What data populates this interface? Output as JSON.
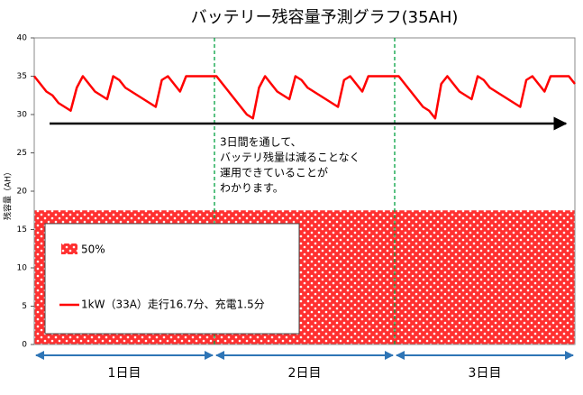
{
  "chart_data": {
    "type": "line",
    "title": "バッテリー残容量予測グラフ(35AH)",
    "y_label": "残容量（AH）",
    "ylim": [
      0,
      40
    ],
    "yticks": [
      0,
      5,
      10,
      15,
      20,
      25,
      30,
      35,
      40
    ],
    "categories": [
      null,
      null,
      null,
      null,
      null,
      null,
      null,
      null,
      null,
      null,
      null,
      null,
      null,
      null,
      null,
      null,
      null,
      null,
      null,
      null,
      null,
      null,
      null,
      null,
      null,
      null,
      null,
      null,
      null,
      null,
      null,
      null,
      null,
      null,
      null,
      null,
      null,
      null,
      null,
      null,
      null,
      null,
      null,
      null,
      null,
      null,
      null,
      null,
      null,
      null,
      null,
      null,
      null,
      null,
      null,
      null,
      null,
      null,
      null,
      null,
      null,
      null,
      null,
      null,
      null,
      null,
      null,
      null,
      null,
      null,
      null,
      null,
      null,
      null,
      null,
      null,
      null,
      null,
      null,
      null,
      null,
      null,
      null,
      null,
      null,
      null,
      null,
      null,
      null,
      null
    ],
    "series": [
      {
        "name": "1kW（33A）走行16.7分、充電1.5分",
        "color": "#ff0000",
        "values": [
          35,
          34,
          33,
          32.5,
          31.5,
          31,
          30.5,
          33.5,
          35,
          34,
          33,
          32.5,
          32,
          35,
          34.5,
          33.5,
          33,
          32.5,
          32,
          31.5,
          31,
          34.5,
          35,
          34,
          33,
          35,
          35,
          35,
          35,
          35,
          35,
          34,
          33,
          32,
          31,
          30,
          29.5,
          33.5,
          35,
          34,
          33,
          32.5,
          32,
          35,
          34.5,
          33.5,
          33,
          32.5,
          32,
          31.5,
          31,
          34.5,
          35,
          34,
          33,
          35,
          35,
          35,
          35,
          35,
          35,
          34,
          33,
          32,
          31,
          30.5,
          29.5,
          34,
          35,
          34,
          33,
          32.5,
          32,
          35,
          34.5,
          33.5,
          33,
          32.5,
          32,
          31.5,
          31,
          34.5,
          35,
          34,
          33,
          35,
          35,
          35,
          35,
          34
        ]
      }
    ],
    "threshold": {
      "name": "50%",
      "value": 17.5,
      "color": "#ff0000"
    },
    "annotation": [
      "3日間を通して、",
      "バッテリ残量は減ることなく",
      "運用できていることが",
      "わかります。"
    ],
    "day_labels": [
      "1日目",
      "2日目",
      "3日目"
    ]
  }
}
